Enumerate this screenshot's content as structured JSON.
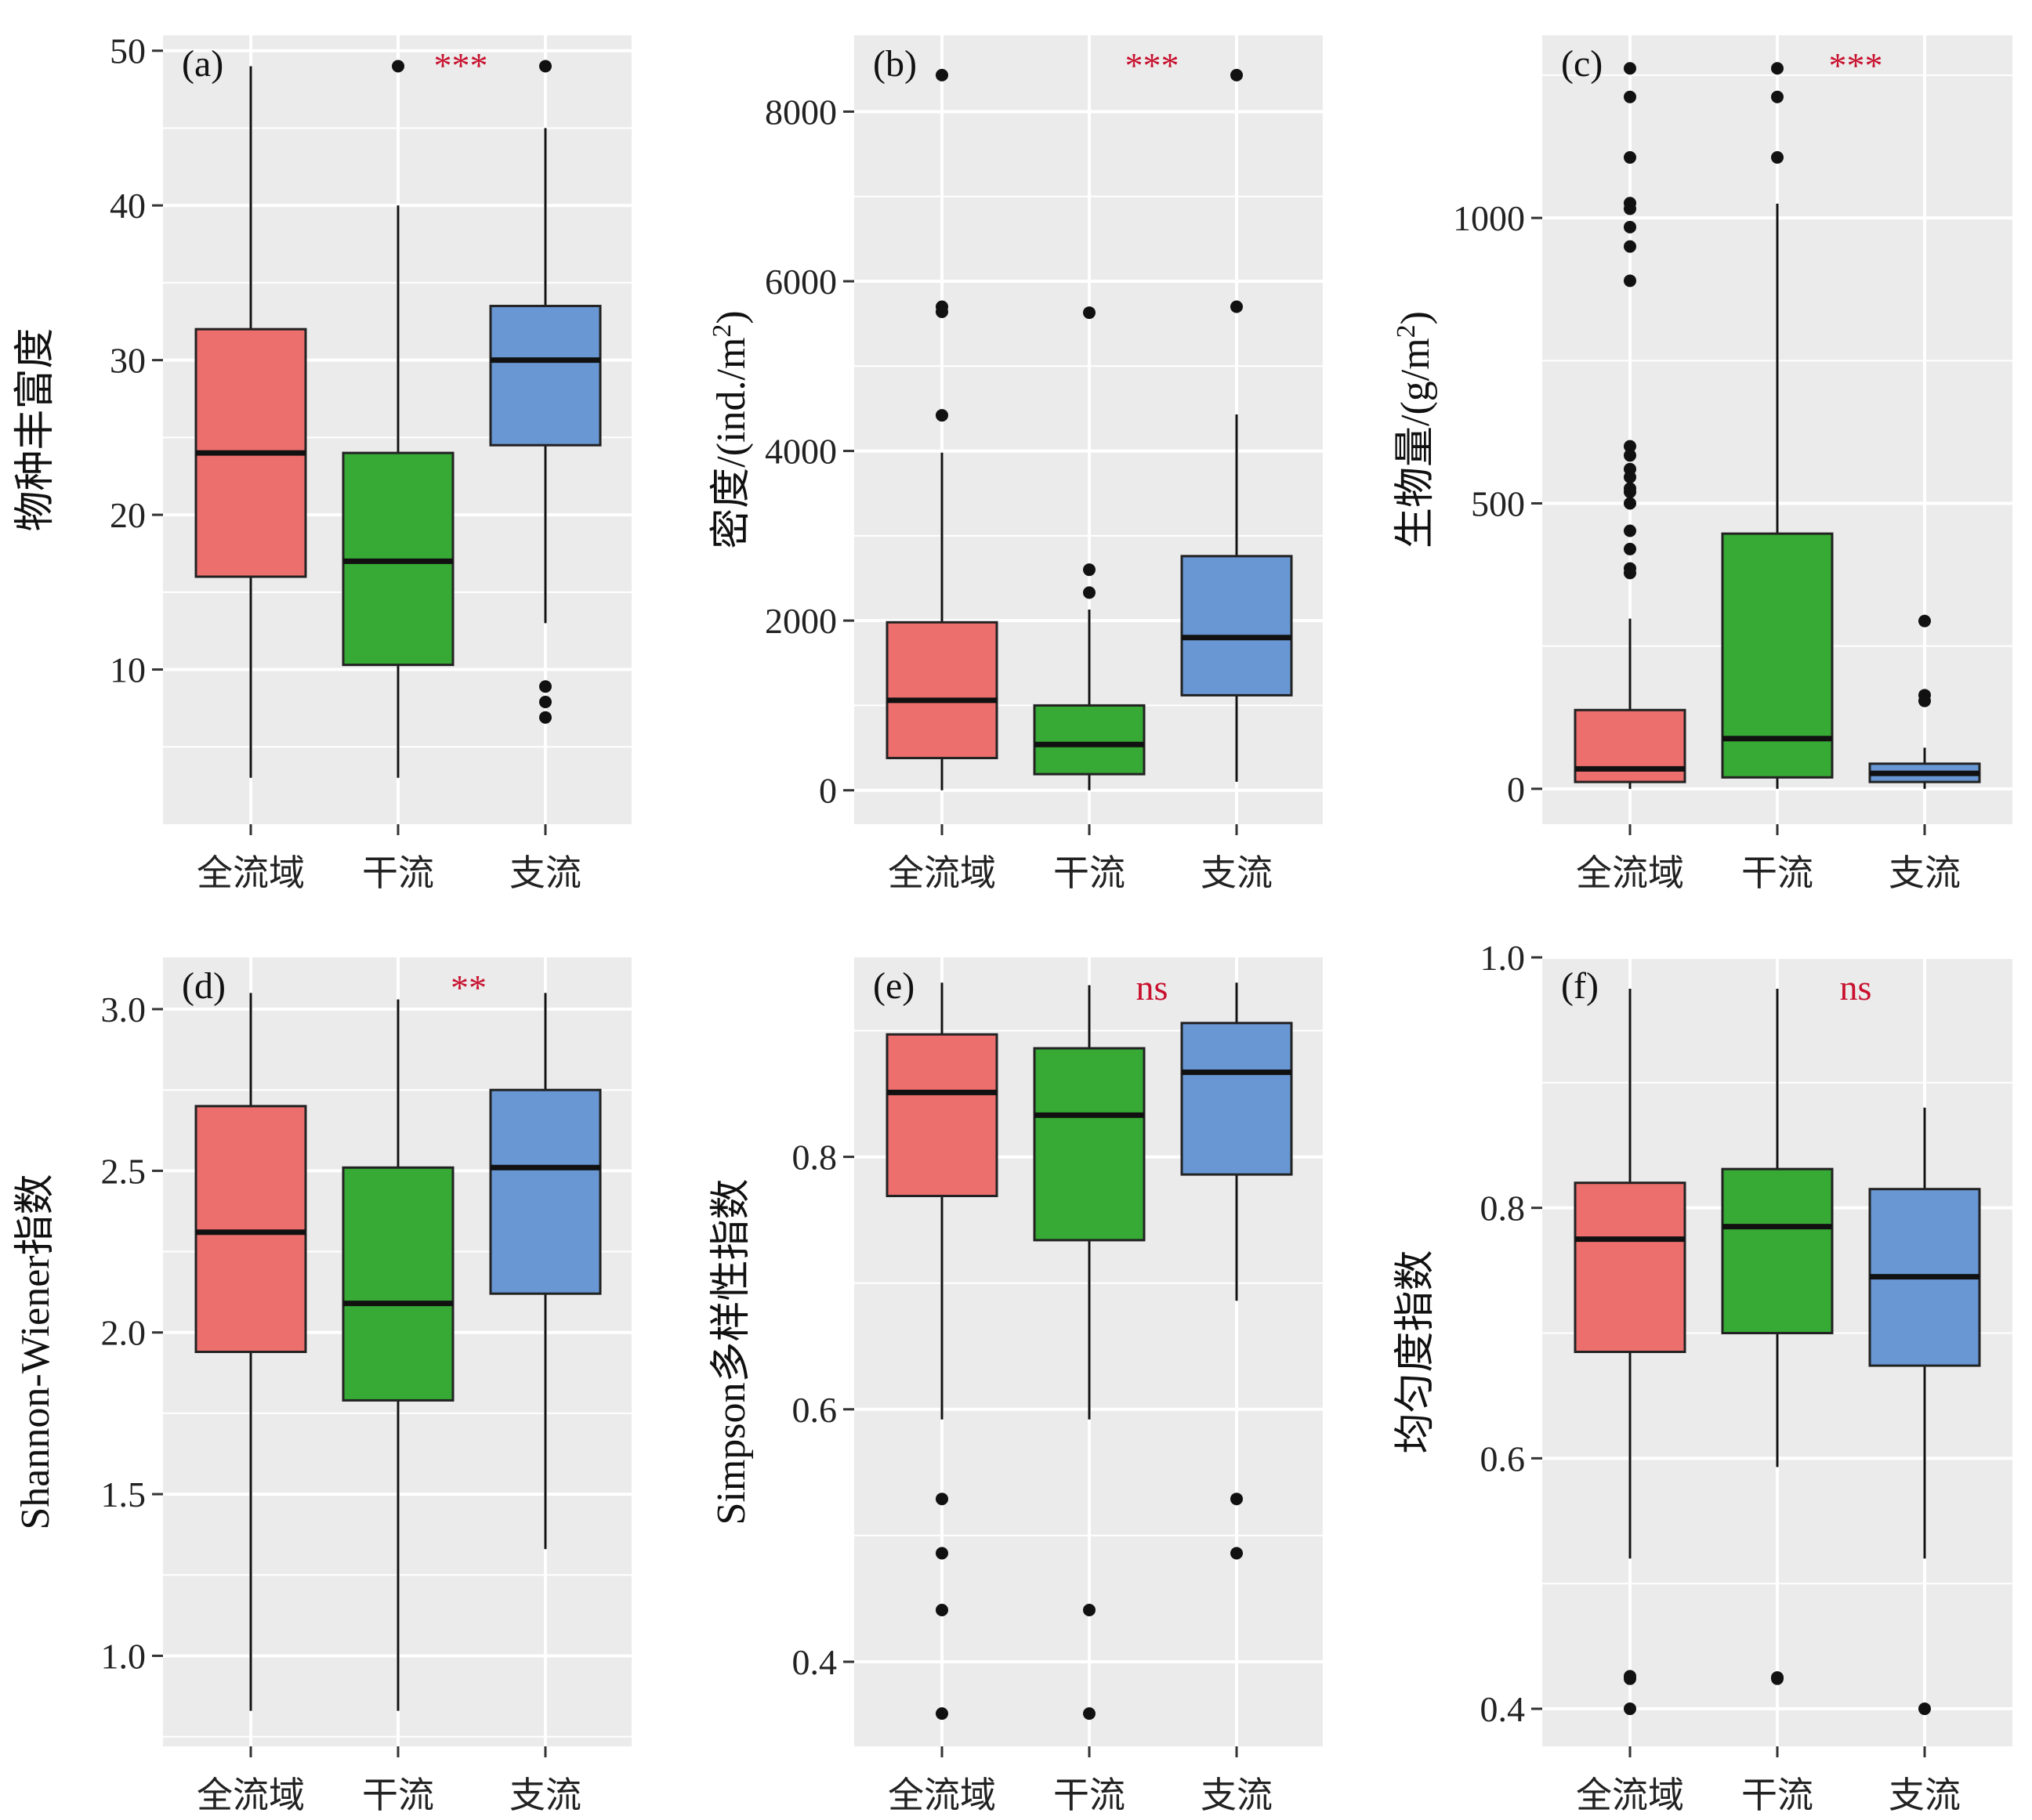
{
  "colors": {
    "panel_bg": "#EBEBEB",
    "grid": "#FFFFFF",
    "box_all": "#ED6F6D",
    "box_main": "#37A935",
    "box_trib": "#6897D3",
    "median": "#111111",
    "outlier": "#111111",
    "significance": "#C8102E"
  },
  "categories": [
    "全流域",
    "干流",
    "支流"
  ],
  "chart_data": [
    {
      "id": "a",
      "type": "box",
      "panel_label": "(a)",
      "ylabel": "物种丰富度",
      "significance": "***",
      "ylim": [
        0,
        51
      ],
      "ticks": [
        10,
        20,
        30,
        40,
        50
      ],
      "tick_labels": [
        "10",
        "20",
        "30",
        "40",
        "50"
      ],
      "boxes": [
        {
          "category": "全流域",
          "min": 3,
          "q1": 16,
          "median": 24,
          "q3": 32,
          "max": 49,
          "outliers": []
        },
        {
          "category": "干流",
          "min": 3,
          "q1": 10.3,
          "median": 17,
          "q3": 24,
          "max": 40,
          "outliers": [
            49
          ]
        },
        {
          "category": "支流",
          "min": 13,
          "q1": 24.5,
          "median": 30,
          "q3": 33.5,
          "max": 45,
          "outliers": [
            49,
            8.9,
            7.9,
            6.9
          ]
        }
      ]
    },
    {
      "id": "b",
      "type": "box",
      "panel_label": "(b)",
      "ylabel": "密度/(ind./m²)",
      "significance": "***",
      "ylim": [
        -400,
        8900
      ],
      "ticks": [
        0,
        2000,
        4000,
        6000,
        8000
      ],
      "tick_labels": [
        "0",
        "2000",
        "4000",
        "6000",
        "8000"
      ],
      "boxes": [
        {
          "category": "全流域",
          "min": 0,
          "q1": 380,
          "median": 1060,
          "q3": 1980,
          "max": 3980,
          "outliers": [
            8430,
            5700,
            5640,
            4420
          ]
        },
        {
          "category": "干流",
          "min": 0,
          "q1": 190,
          "median": 540,
          "q3": 1000,
          "max": 2130,
          "outliers": [
            5630,
            2600,
            2330
          ]
        },
        {
          "category": "支流",
          "min": 100,
          "q1": 1120,
          "median": 1800,
          "q3": 2760,
          "max": 4430,
          "outliers": [
            8430,
            5700
          ]
        }
      ]
    },
    {
      "id": "c",
      "type": "box",
      "panel_label": "(c)",
      "ylabel": "生物量/(g/m²)",
      "significance": "***",
      "ylim": [
        -62,
        1320
      ],
      "ticks": [
        0,
        500,
        1000
      ],
      "tick_labels": [
        "0",
        "500",
        "1000"
      ],
      "boxes": [
        {
          "category": "全流域",
          "min": 0,
          "q1": 12,
          "median": 35,
          "q3": 138,
          "max": 298,
          "outliers": [
            1262,
            1212,
            1106,
            1026,
            1016,
            984,
            950,
            890,
            600,
            584,
            560,
            546,
            526,
            520,
            500,
            452,
            420,
            386,
            378
          ]
        },
        {
          "category": "干流",
          "min": 0,
          "q1": 20,
          "median": 88,
          "q3": 447,
          "max": 1025,
          "outliers": [
            1262,
            1212,
            1106
          ]
        },
        {
          "category": "支流",
          "min": 0,
          "q1": 12,
          "median": 27,
          "q3": 44,
          "max": 72,
          "outliers": [
            294,
            164,
            154
          ]
        }
      ]
    },
    {
      "id": "d",
      "type": "box",
      "panel_label": "(d)",
      "ylabel": "Shannon-Wiener指数",
      "significance": "**",
      "ylim": [
        0.72,
        3.16
      ],
      "ticks": [
        1.0,
        1.5,
        2.0,
        2.5,
        3.0
      ],
      "tick_labels": [
        "1.0",
        "1.5",
        "2.0",
        "2.5",
        "3.0"
      ],
      "boxes": [
        {
          "category": "全流域",
          "min": 0.83,
          "q1": 1.94,
          "median": 2.31,
          "q3": 2.7,
          "max": 3.05,
          "outliers": []
        },
        {
          "category": "干流",
          "min": 0.83,
          "q1": 1.79,
          "median": 2.09,
          "q3": 2.51,
          "max": 3.03,
          "outliers": []
        },
        {
          "category": "支流",
          "min": 1.33,
          "q1": 2.12,
          "median": 2.51,
          "q3": 2.75,
          "max": 3.05,
          "outliers": []
        }
      ]
    },
    {
      "id": "e",
      "type": "box",
      "panel_label": "(e)",
      "ylabel": "Simpson多样性指数",
      "significance": "ns",
      "ylim": [
        0.333,
        0.958
      ],
      "ticks": [
        0.4,
        0.6,
        0.8
      ],
      "tick_labels": [
        "0.4",
        "0.6",
        "0.8"
      ],
      "boxes": [
        {
          "category": "全流域",
          "min": 0.592,
          "q1": 0.769,
          "median": 0.851,
          "q3": 0.897,
          "max": 0.938,
          "outliers": [
            0.529,
            0.486,
            0.441,
            0.359
          ]
        },
        {
          "category": "干流",
          "min": 0.592,
          "q1": 0.734,
          "median": 0.833,
          "q3": 0.886,
          "max": 0.936,
          "outliers": [
            0.441,
            0.359
          ]
        },
        {
          "category": "支流",
          "min": 0.686,
          "q1": 0.786,
          "median": 0.867,
          "q3": 0.906,
          "max": 0.938,
          "outliers": [
            0.529,
            0.486
          ]
        }
      ]
    },
    {
      "id": "f",
      "type": "box",
      "panel_label": "(f)",
      "ylabel": "均匀度指数",
      "significance": "ns",
      "ylim": [
        0.37,
        1.0
      ],
      "ticks": [
        0.4,
        0.6,
        0.8,
        1.0
      ],
      "tick_labels": [
        "0.4",
        "0.6",
        "0.8",
        "1.0"
      ],
      "boxes": [
        {
          "category": "全流域",
          "min": 0.52,
          "q1": 0.685,
          "median": 0.775,
          "q3": 0.82,
          "max": 0.975,
          "outliers": [
            0.426,
            0.424,
            0.4
          ]
        },
        {
          "category": "干流",
          "min": 0.593,
          "q1": 0.7,
          "median": 0.785,
          "q3": 0.831,
          "max": 0.975,
          "outliers": [
            0.425,
            0.424
          ]
        },
        {
          "category": "支流",
          "min": 0.52,
          "q1": 0.674,
          "median": 0.745,
          "q3": 0.815,
          "max": 0.88,
          "outliers": [
            0.4
          ]
        }
      ]
    }
  ]
}
